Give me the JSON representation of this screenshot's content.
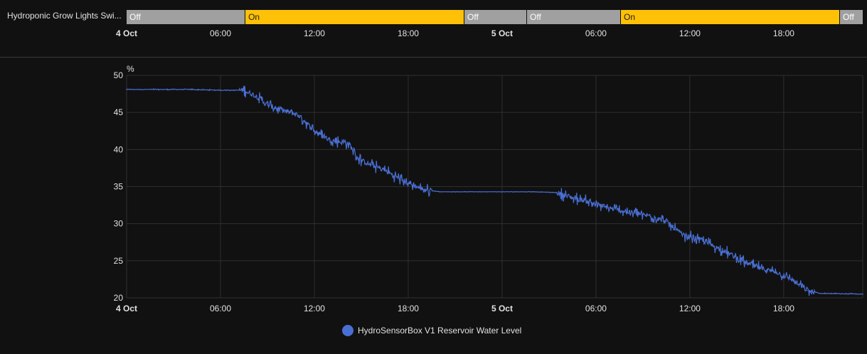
{
  "timeline": {
    "label": "Hydroponic Grow Lights  Swi...",
    "colors": {
      "on": "#ffc107",
      "off": "#a0a0a0"
    },
    "segments": [
      {
        "state": "Off",
        "start_hour": 0.0,
        "end_hour": 7.55
      },
      {
        "state": "On",
        "start_hour": 7.55,
        "end_hour": 21.55
      },
      {
        "state": "Off",
        "start_hour": 21.55,
        "end_hour": 25.55
      },
      {
        "state": "Off",
        "start_hour": 25.55,
        "end_hour": 31.55
      },
      {
        "state": "On",
        "start_hour": 31.55,
        "end_hour": 45.55
      },
      {
        "state": "Off",
        "start_hour": 45.55,
        "end_hour": 47.05
      }
    ],
    "ticks": [
      {
        "label": "4 Oct",
        "hour": 0,
        "bold": true
      },
      {
        "label": "06:00",
        "hour": 6,
        "bold": false
      },
      {
        "label": "12:00",
        "hour": 12,
        "bold": false
      },
      {
        "label": "18:00",
        "hour": 18,
        "bold": false
      },
      {
        "label": "5 Oct",
        "hour": 24,
        "bold": true
      },
      {
        "label": "06:00",
        "hour": 30,
        "bold": false
      },
      {
        "label": "12:00",
        "hour": 36,
        "bold": false
      },
      {
        "label": "18:00",
        "hour": 42,
        "bold": false
      }
    ]
  },
  "chart_data": {
    "type": "line",
    "unit": "%",
    "xlim_hours": [
      0,
      47.05
    ],
    "ylim": [
      20,
      50
    ],
    "yticks": [
      20,
      25,
      30,
      35,
      40,
      45,
      50
    ],
    "xticks": [
      {
        "label": "4 Oct",
        "hour": 0,
        "bold": true
      },
      {
        "label": "06:00",
        "hour": 6,
        "bold": false
      },
      {
        "label": "12:00",
        "hour": 12,
        "bold": false
      },
      {
        "label": "18:00",
        "hour": 18,
        "bold": false
      },
      {
        "label": "5 Oct",
        "hour": 24,
        "bold": true
      },
      {
        "label": "06:00",
        "hour": 30,
        "bold": false
      },
      {
        "label": "12:00",
        "hour": 36,
        "bold": false
      },
      {
        "label": "18:00",
        "hour": 42,
        "bold": false
      }
    ],
    "grid": true,
    "legend_position": "bottom-center",
    "series": [
      {
        "name": "HydroSensorBox V1 Reservoir Water Level",
        "color": "#4a6fd4",
        "points": [
          [
            0,
            48.1
          ],
          [
            4,
            48.1
          ],
          [
            6,
            48.0
          ],
          [
            7.5,
            48.0
          ],
          [
            8.3,
            47.2
          ],
          [
            9,
            46.0
          ],
          [
            10,
            45.3
          ],
          [
            11,
            44.6
          ],
          [
            11.5,
            43.6
          ],
          [
            12,
            42.5
          ],
          [
            13,
            41.3
          ],
          [
            14.2,
            40.8
          ],
          [
            14.8,
            38.8
          ],
          [
            15.5,
            38.0
          ],
          [
            16.5,
            37.2
          ],
          [
            17.5,
            36.0
          ],
          [
            18.3,
            35.2
          ],
          [
            19,
            34.6
          ],
          [
            20,
            34.3
          ],
          [
            26,
            34.3
          ],
          [
            27.5,
            34.2
          ],
          [
            28.5,
            33.5
          ],
          [
            29.5,
            33.0
          ],
          [
            30.5,
            32.3
          ],
          [
            31.5,
            31.8
          ],
          [
            32.5,
            31.4
          ],
          [
            33.5,
            31.0
          ],
          [
            34.5,
            30.3
          ],
          [
            35.5,
            28.5
          ],
          [
            36.5,
            28.0
          ],
          [
            37.5,
            27.0
          ],
          [
            38.5,
            26.0
          ],
          [
            39.5,
            24.8
          ],
          [
            40.5,
            24.0
          ],
          [
            41.5,
            23.5
          ],
          [
            42.5,
            22.5
          ],
          [
            43.5,
            21.0
          ],
          [
            44.3,
            20.6
          ],
          [
            47.05,
            20.5
          ]
        ]
      }
    ]
  }
}
